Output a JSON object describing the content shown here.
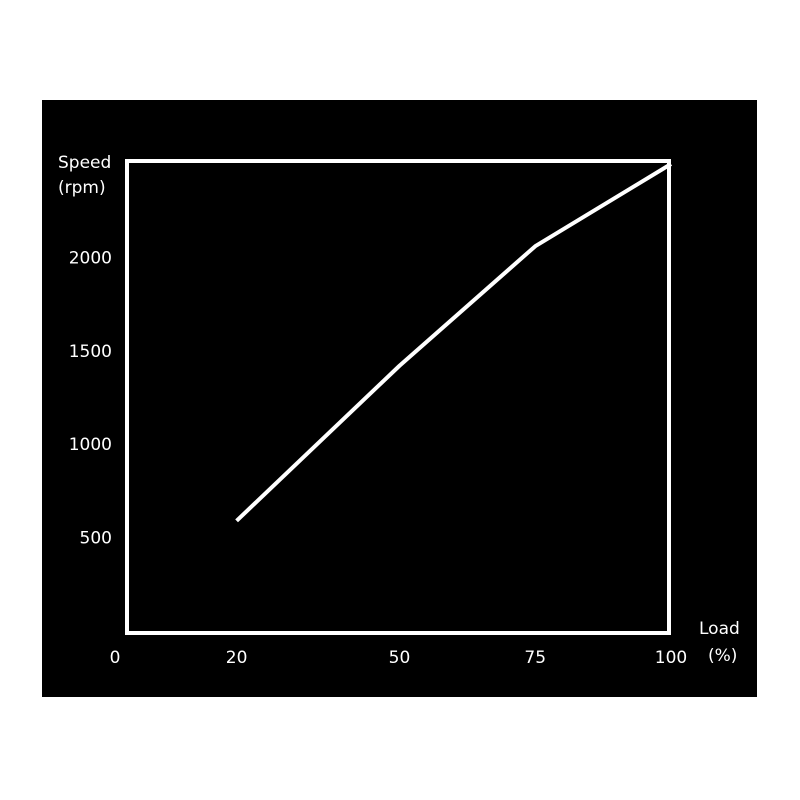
{
  "chart_data": {
    "type": "line",
    "xlabel": [
      "Load",
      "(%)"
    ],
    "ylabel": [
      "Speed",
      "(rpm)"
    ],
    "x_ticks": [
      "0",
      "20",
      "50",
      "75",
      "100"
    ],
    "x_tick_values": [
      0,
      20,
      50,
      75,
      100
    ],
    "y_ticks": [
      "500",
      "1000",
      "1500",
      "2000"
    ],
    "y_tick_values": [
      500,
      1000,
      1500,
      2000
    ],
    "xlim": [
      0,
      100
    ],
    "ylim": [
      0,
      2500
    ],
    "grid": "horizontal",
    "series": [
      {
        "x": [
          20,
          50,
          75,
          100
        ],
        "y": [
          590,
          1420,
          2060,
          2500
        ]
      }
    ],
    "colors": {
      "background": "#000000",
      "line": "#ffffff",
      "frame": "#ffffff",
      "grid": "#555555"
    }
  }
}
